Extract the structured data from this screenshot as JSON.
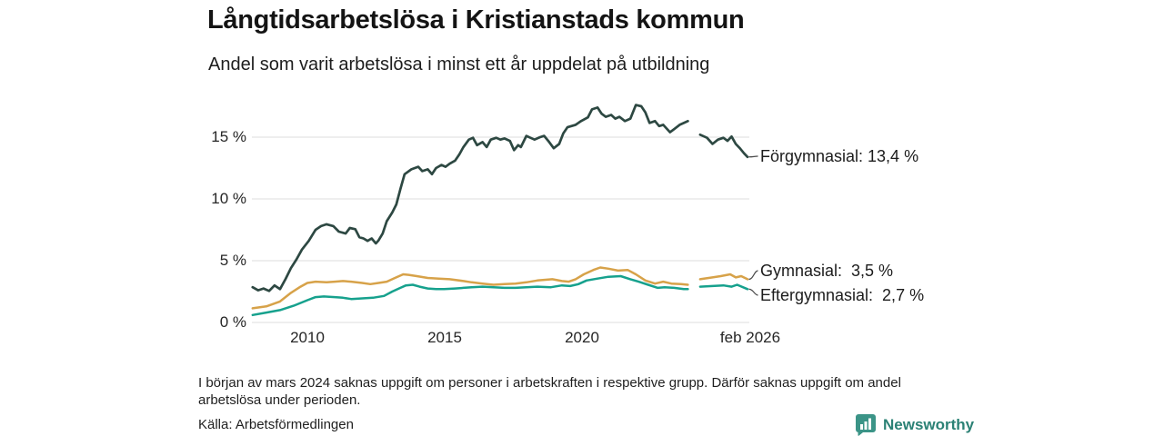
{
  "chart_data": {
    "type": "line",
    "title": "Långtidsarbetslösa i Kristianstads kommun",
    "subtitle": "Andel som varit arbetslösa i minst ett år uppdelat på utbildning",
    "grid": true,
    "legend_position": "right-end-labels",
    "x_axis": {
      "tick_labels": [
        "2010",
        "2015",
        "2020",
        "feb 2026"
      ],
      "tick_years": [
        2010,
        2015,
        2020,
        2026.08
      ],
      "range": [
        2008,
        2026.25
      ]
    },
    "y_axis": {
      "tick_labels": [
        "0 %",
        "5 %",
        "10 %",
        "15 %"
      ],
      "tick_values": [
        0,
        5,
        10,
        15
      ],
      "unit": "%",
      "range": [
        0,
        18
      ]
    },
    "gap_period": "mars 2024",
    "series": [
      {
        "name": "Förgymnasial",
        "end_label": "Förgymnasial: 13,4 %",
        "end_value": "13,4 %",
        "color": "#2d4842",
        "points": [
          [
            2008.0,
            2.85
          ],
          [
            2008.2,
            2.6
          ],
          [
            2008.4,
            2.75
          ],
          [
            2008.6,
            2.55
          ],
          [
            2008.8,
            3.0
          ],
          [
            2009.0,
            2.7
          ],
          [
            2009.2,
            3.5
          ],
          [
            2009.4,
            4.4
          ],
          [
            2009.6,
            5.1
          ],
          [
            2009.8,
            5.9
          ],
          [
            2010.05,
            6.6
          ],
          [
            2010.3,
            7.5
          ],
          [
            2010.5,
            7.8
          ],
          [
            2010.7,
            7.95
          ],
          [
            2010.95,
            7.8
          ],
          [
            2011.15,
            7.35
          ],
          [
            2011.4,
            7.2
          ],
          [
            2011.55,
            7.65
          ],
          [
            2011.75,
            7.55
          ],
          [
            2011.9,
            6.9
          ],
          [
            2012.05,
            6.8
          ],
          [
            2012.2,
            6.6
          ],
          [
            2012.35,
            6.8
          ],
          [
            2012.5,
            6.4
          ],
          [
            2012.6,
            6.65
          ],
          [
            2012.75,
            7.2
          ],
          [
            2012.9,
            8.2
          ],
          [
            2013.1,
            8.9
          ],
          [
            2013.25,
            9.55
          ],
          [
            2013.4,
            10.8
          ],
          [
            2013.55,
            12.0
          ],
          [
            2013.8,
            12.4
          ],
          [
            2014.05,
            12.6
          ],
          [
            2014.2,
            12.25
          ],
          [
            2014.4,
            12.4
          ],
          [
            2014.55,
            12.0
          ],
          [
            2014.7,
            12.5
          ],
          [
            2014.9,
            12.75
          ],
          [
            2015.05,
            12.6
          ],
          [
            2015.2,
            12.85
          ],
          [
            2015.4,
            13.1
          ],
          [
            2015.55,
            13.6
          ],
          [
            2015.7,
            14.2
          ],
          [
            2015.9,
            14.8
          ],
          [
            2016.05,
            14.95
          ],
          [
            2016.2,
            14.35
          ],
          [
            2016.4,
            14.6
          ],
          [
            2016.55,
            14.2
          ],
          [
            2016.7,
            14.8
          ],
          [
            2016.9,
            14.95
          ],
          [
            2017.05,
            14.8
          ],
          [
            2017.2,
            14.9
          ],
          [
            2017.4,
            14.7
          ],
          [
            2017.55,
            13.95
          ],
          [
            2017.7,
            14.35
          ],
          [
            2017.8,
            14.2
          ],
          [
            2018.0,
            15.1
          ],
          [
            2018.15,
            14.95
          ],
          [
            2018.3,
            14.8
          ],
          [
            2018.5,
            15.0
          ],
          [
            2018.65,
            15.1
          ],
          [
            2018.8,
            14.7
          ],
          [
            2019.0,
            14.1
          ],
          [
            2019.2,
            14.45
          ],
          [
            2019.35,
            15.3
          ],
          [
            2019.5,
            15.8
          ],
          [
            2019.8,
            16.0
          ],
          [
            2020.0,
            16.3
          ],
          [
            2020.25,
            16.6
          ],
          [
            2020.4,
            17.25
          ],
          [
            2020.6,
            17.4
          ],
          [
            2020.75,
            16.9
          ],
          [
            2020.9,
            16.65
          ],
          [
            2021.1,
            16.8
          ],
          [
            2021.25,
            16.5
          ],
          [
            2021.4,
            16.65
          ],
          [
            2021.6,
            16.3
          ],
          [
            2021.8,
            16.5
          ],
          [
            2022.0,
            17.6
          ],
          [
            2022.2,
            17.5
          ],
          [
            2022.35,
            17.0
          ],
          [
            2022.5,
            16.15
          ],
          [
            2022.7,
            16.3
          ],
          [
            2022.85,
            15.9
          ],
          [
            2023.0,
            16.0
          ],
          [
            2023.25,
            15.4
          ],
          [
            2023.4,
            15.65
          ],
          [
            2023.6,
            16.0
          ],
          [
            2023.75,
            16.15
          ],
          [
            2023.9,
            16.3
          ],
          null,
          [
            2024.35,
            15.2
          ],
          [
            2024.6,
            14.95
          ],
          [
            2024.8,
            14.45
          ],
          [
            2025.0,
            14.8
          ],
          [
            2025.2,
            14.95
          ],
          [
            2025.35,
            14.7
          ],
          [
            2025.5,
            15.05
          ],
          [
            2025.65,
            14.45
          ],
          [
            2025.8,
            14.1
          ],
          [
            2025.95,
            13.7
          ],
          [
            2026.08,
            13.4
          ]
        ]
      },
      {
        "name": "Gymnasial",
        "end_label": "Gymnasial:  3,5 %",
        "end_value": "3,5 %",
        "color": "#d7a249",
        "points": [
          [
            2008.0,
            1.15
          ],
          [
            2008.5,
            1.3
          ],
          [
            2009.0,
            1.7
          ],
          [
            2009.4,
            2.4
          ],
          [
            2009.75,
            2.9
          ],
          [
            2010.0,
            3.2
          ],
          [
            2010.3,
            3.3
          ],
          [
            2010.7,
            3.25
          ],
          [
            2011.0,
            3.3
          ],
          [
            2011.3,
            3.35
          ],
          [
            2011.6,
            3.3
          ],
          [
            2012.0,
            3.2
          ],
          [
            2012.3,
            3.1
          ],
          [
            2012.6,
            3.2
          ],
          [
            2012.9,
            3.3
          ],
          [
            2013.2,
            3.6
          ],
          [
            2013.5,
            3.9
          ],
          [
            2013.7,
            3.85
          ],
          [
            2014.0,
            3.75
          ],
          [
            2014.4,
            3.6
          ],
          [
            2014.8,
            3.55
          ],
          [
            2015.2,
            3.5
          ],
          [
            2015.7,
            3.35
          ],
          [
            2016.0,
            3.25
          ],
          [
            2016.4,
            3.15
          ],
          [
            2016.8,
            3.05
          ],
          [
            2017.2,
            3.1
          ],
          [
            2017.6,
            3.15
          ],
          [
            2018.0,
            3.25
          ],
          [
            2018.4,
            3.4
          ],
          [
            2018.95,
            3.5
          ],
          [
            2019.3,
            3.35
          ],
          [
            2019.55,
            3.3
          ],
          [
            2019.8,
            3.5
          ],
          [
            2020.1,
            3.9
          ],
          [
            2020.45,
            4.25
          ],
          [
            2020.7,
            4.45
          ],
          [
            2021.0,
            4.35
          ],
          [
            2021.35,
            4.2
          ],
          [
            2021.7,
            4.25
          ],
          [
            2022.0,
            3.9
          ],
          [
            2022.35,
            3.4
          ],
          [
            2022.7,
            3.15
          ],
          [
            2023.0,
            3.3
          ],
          [
            2023.3,
            3.15
          ],
          [
            2023.65,
            3.1
          ],
          [
            2023.9,
            3.05
          ],
          null,
          [
            2024.35,
            3.5
          ],
          [
            2024.8,
            3.65
          ],
          [
            2025.1,
            3.75
          ],
          [
            2025.45,
            3.9
          ],
          [
            2025.65,
            3.65
          ],
          [
            2025.85,
            3.75
          ],
          [
            2026.08,
            3.5
          ]
        ]
      },
      {
        "name": "Eftergymnasial",
        "end_label": "Eftergymnasial:  2,7 %",
        "end_value": "2,7 %",
        "color": "#16a18d",
        "points": [
          [
            2008.0,
            0.6
          ],
          [
            2008.5,
            0.8
          ],
          [
            2009.0,
            1.0
          ],
          [
            2009.5,
            1.35
          ],
          [
            2010.0,
            1.8
          ],
          [
            2010.3,
            2.05
          ],
          [
            2010.6,
            2.1
          ],
          [
            2011.0,
            2.05
          ],
          [
            2011.3,
            2.0
          ],
          [
            2011.6,
            1.9
          ],
          [
            2012.0,
            1.95
          ],
          [
            2012.4,
            2.0
          ],
          [
            2012.8,
            2.15
          ],
          [
            2013.1,
            2.5
          ],
          [
            2013.4,
            2.8
          ],
          [
            2013.6,
            3.0
          ],
          [
            2013.85,
            3.05
          ],
          [
            2014.1,
            2.9
          ],
          [
            2014.4,
            2.75
          ],
          [
            2014.7,
            2.7
          ],
          [
            2015.0,
            2.7
          ],
          [
            2015.4,
            2.75
          ],
          [
            2015.7,
            2.8
          ],
          [
            2016.0,
            2.85
          ],
          [
            2016.4,
            2.9
          ],
          [
            2016.8,
            2.85
          ],
          [
            2017.2,
            2.8
          ],
          [
            2017.6,
            2.8
          ],
          [
            2018.0,
            2.85
          ],
          [
            2018.4,
            2.9
          ],
          [
            2018.9,
            2.85
          ],
          [
            2019.3,
            3.0
          ],
          [
            2019.6,
            2.95
          ],
          [
            2019.9,
            3.1
          ],
          [
            2020.2,
            3.4
          ],
          [
            2020.6,
            3.55
          ],
          [
            2021.0,
            3.7
          ],
          [
            2021.45,
            3.75
          ],
          [
            2021.8,
            3.5
          ],
          [
            2022.1,
            3.3
          ],
          [
            2022.45,
            3.05
          ],
          [
            2022.8,
            2.8
          ],
          [
            2023.05,
            2.85
          ],
          [
            2023.4,
            2.8
          ],
          [
            2023.75,
            2.7
          ],
          [
            2023.9,
            2.7
          ],
          null,
          [
            2024.35,
            2.9
          ],
          [
            2024.8,
            2.95
          ],
          [
            2025.2,
            3.0
          ],
          [
            2025.5,
            2.9
          ],
          [
            2025.7,
            3.05
          ],
          [
            2026.08,
            2.7
          ]
        ]
      }
    ]
  },
  "footer": {
    "note": "I början av mars 2024 saknas uppgift om personer i arbetskraften i respektive grupp. Därför saknas uppgift om andel arbetslösa under perioden.",
    "source": "Källa: Arbetsförmedlingen",
    "brand": "Newsworthy"
  },
  "colors": {
    "grid": "#e4e4e4",
    "leader": "#4a4a4a",
    "brand": "#2b8175",
    "logo_background": "#3b9487"
  }
}
